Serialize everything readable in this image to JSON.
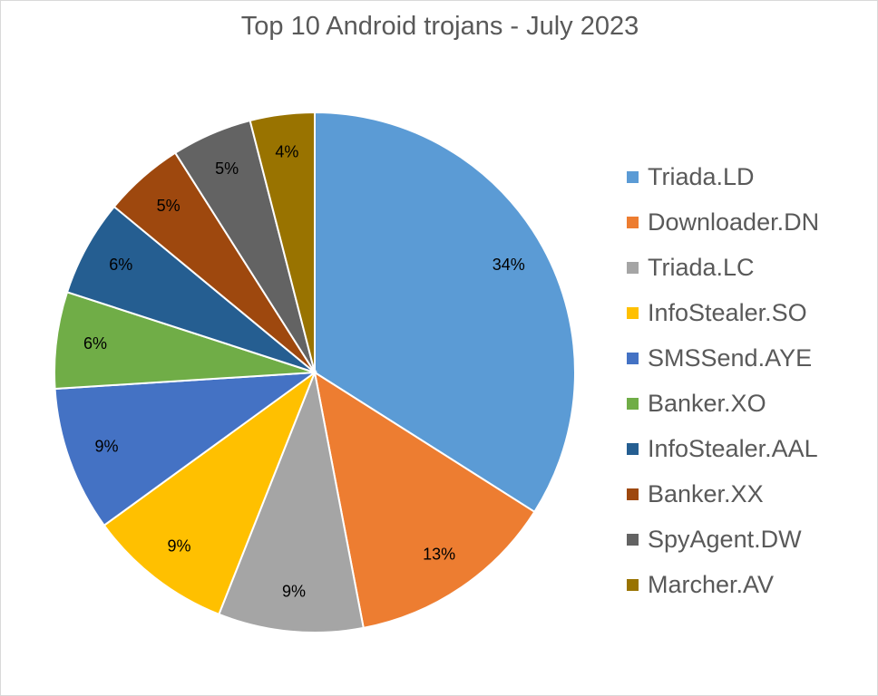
{
  "chart_data": {
    "type": "pie",
    "title": "Top 10 Android trojans - July 2023",
    "legend_position": "right",
    "slices": [
      {
        "label": "Triada.LD",
        "value": 34,
        "display": "34%",
        "color": "#5b9bd5"
      },
      {
        "label": "Downloader.DN",
        "value": 13,
        "display": "13%",
        "color": "#ed7d31"
      },
      {
        "label": "Triada.LC",
        "value": 9,
        "display": "9%",
        "color": "#a5a5a5"
      },
      {
        "label": "InfoStealer.SO",
        "value": 9,
        "display": "9%",
        "color": "#ffc000"
      },
      {
        "label": "SMSSend.AYE",
        "value": 9,
        "display": "9%",
        "color": "#4472c4"
      },
      {
        "label": "Banker.XO",
        "value": 6,
        "display": "6%",
        "color": "#70ad47"
      },
      {
        "label": "InfoStealer.AAL",
        "value": 6,
        "display": "6%",
        "color": "#255e91"
      },
      {
        "label": "Banker.XX",
        "value": 5,
        "display": "5%",
        "color": "#9e480e"
      },
      {
        "label": "SpyAgent.DW",
        "value": 5,
        "display": "5%",
        "color": "#636363"
      },
      {
        "label": "Marcher.AV",
        "value": 4,
        "display": "4%",
        "color": "#997300"
      }
    ]
  }
}
